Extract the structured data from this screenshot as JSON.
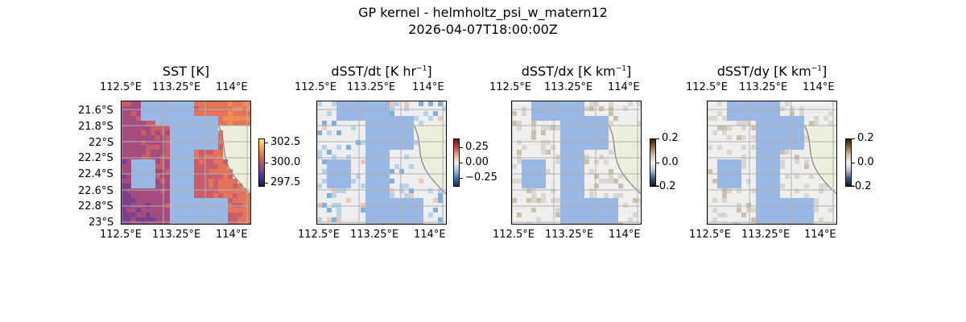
{
  "figure": {
    "title_line1": "GP kernel - helmholtz_psi_w_matern12",
    "title_line2": "2026-04-07T18:00:00Z"
  },
  "colors": {
    "land": "#eeeedd",
    "ocean_mask": "#9bb7e3",
    "grid": "#b0b0b0",
    "coast": "#808080"
  },
  "chart_data": [
    {
      "type": "heatmap",
      "title": "SST [K]",
      "x_ticks": [
        "112.5°E",
        "113.25°E",
        "114°E"
      ],
      "y_ticks": [
        "21.6°S",
        "21.8°S",
        "22°S",
        "22.2°S",
        "22.4°S",
        "22.6°S",
        "22.8°S",
        "23°S"
      ],
      "colorbar_ticks": [
        "302.5",
        "300.0",
        "297.5"
      ],
      "colormap": "thermal",
      "xlim": [
        112.5,
        114.0
      ],
      "ylim": [
        -23.0,
        -21.5
      ]
    },
    {
      "type": "heatmap",
      "title_main": "dSST/dt [K hr",
      "title_exp": "−1",
      "title_end": "]",
      "x_ticks": [
        "112.5°E",
        "113.25°E",
        "114°E"
      ],
      "colorbar_ticks": [
        "0.25",
        "0.00",
        "−0.25"
      ],
      "colormap": "balance"
    },
    {
      "type": "heatmap",
      "title_main": "dSST/dx [K km",
      "title_exp": "−1",
      "title_end": "]",
      "x_ticks": [
        "112.5°E",
        "113.25°E",
        "114°E"
      ],
      "colorbar_ticks": [
        "0.2",
        "0.0",
        "−0.2"
      ],
      "colormap": "diff"
    },
    {
      "type": "heatmap",
      "title_main": "dSST/dy [K km",
      "title_exp": "−1",
      "title_end": "]",
      "x_ticks": [
        "112.5°E",
        "113.25°E",
        "114°E"
      ],
      "colorbar_ticks": [
        "0.2",
        "0.0",
        "−0.2"
      ],
      "colormap": "diff"
    }
  ]
}
